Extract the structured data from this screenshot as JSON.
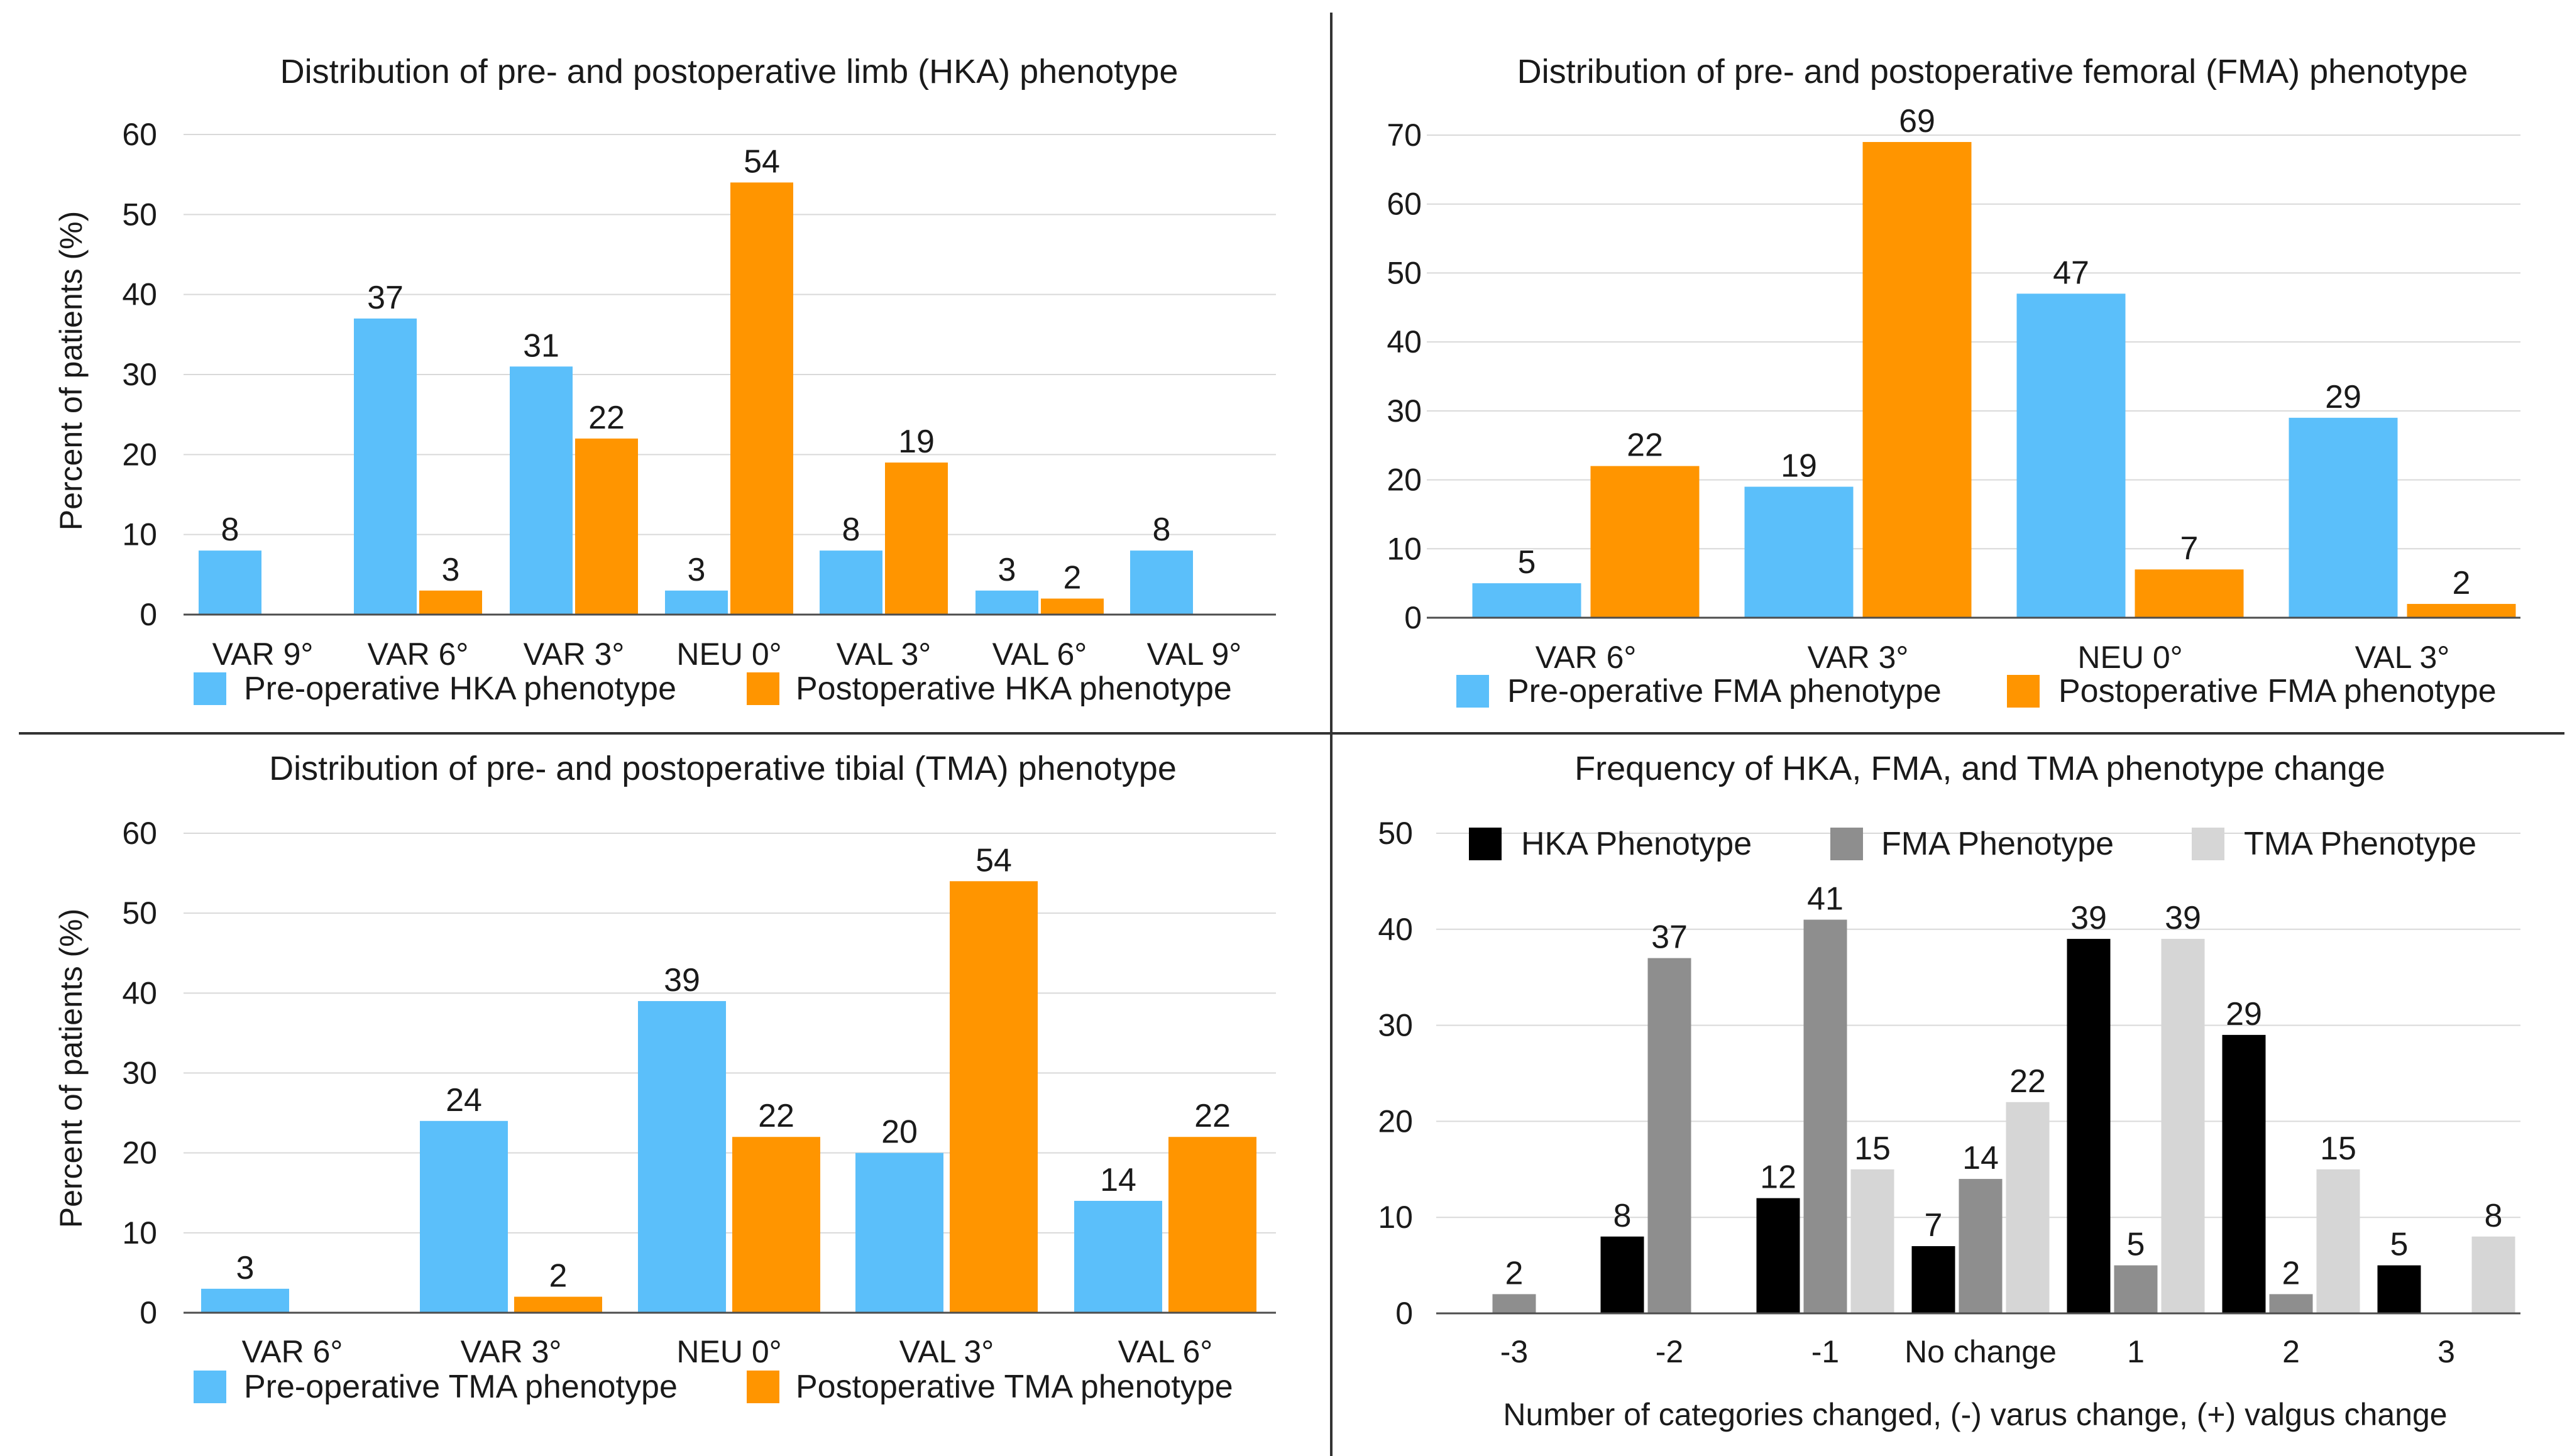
{
  "colors": {
    "pre": "#5bbffa",
    "post": "#ff9500",
    "hka": "#000000",
    "fma": "#8e8e8e",
    "tma": "#d6d6d6",
    "grid": "#d9d9d9",
    "axis": "#4d4d4d",
    "divider": "#333333"
  },
  "chart_data": [
    {
      "type": "bar",
      "title": "Distribution of pre- and postoperative limb (HKA) phenotype",
      "xlabel": "",
      "ylabel": "Percent of patients (%)",
      "ylim": [
        0,
        60
      ],
      "yticks": [
        "0",
        "10",
        "20",
        "30",
        "40",
        "50",
        "60"
      ],
      "legend_position": "bottom",
      "categories": [
        "VAR 9°",
        "VAR 6°",
        "VAR 3°",
        "NEU 0°",
        "VAL 3°",
        "VAL 6°",
        "VAL 9°"
      ],
      "series": [
        {
          "name": "Pre-operative HKA phenotype",
          "color": "#5bbffa",
          "values": [
            8,
            37,
            31,
            3,
            8,
            3,
            8
          ],
          "labels": [
            "8",
            "37",
            "31",
            "3",
            "8",
            "3",
            "8"
          ]
        },
        {
          "name": "Postoperative HKA phenotype",
          "color": "#ff9500",
          "values": [
            null,
            3,
            22,
            54,
            19,
            2,
            null
          ],
          "labels": [
            "",
            "3",
            "22",
            "54",
            "19",
            "2",
            ""
          ]
        }
      ]
    },
    {
      "type": "bar",
      "title": "Distribution of pre- and postoperative femoral (FMA) phenotype",
      "xlabel": "",
      "ylabel": "",
      "ylim": [
        0,
        70
      ],
      "yticks": [
        "0",
        "10",
        "20",
        "30",
        "40",
        "50",
        "60",
        "70"
      ],
      "legend_position": "bottom",
      "categories": [
        "VAR 6°",
        "VAR 3°",
        "NEU 0°",
        "VAL 3°"
      ],
      "series": [
        {
          "name": "Pre-operative FMA phenotype",
          "color": "#5bbffa",
          "values": [
            5,
            19,
            47,
            29
          ],
          "labels": [
            "5",
            "19",
            "47",
            "29"
          ]
        },
        {
          "name": "Postoperative FMA phenotype",
          "color": "#ff9500",
          "values": [
            22,
            69,
            7,
            2
          ],
          "labels": [
            "22",
            "69",
            "7",
            "2"
          ]
        }
      ]
    },
    {
      "type": "bar",
      "title": "Distribution of pre- and postoperative tibial (TMA) phenotype",
      "xlabel": "",
      "ylabel": "Percent of patients (%)",
      "ylim": [
        0,
        60
      ],
      "yticks": [
        "0",
        "10",
        "20",
        "30",
        "40",
        "50",
        "60"
      ],
      "legend_position": "bottom",
      "categories": [
        "VAR 6°",
        "VAR 3°",
        "NEU 0°",
        "VAL 3°",
        "VAL 6°"
      ],
      "series": [
        {
          "name": "Pre-operative TMA phenotype",
          "color": "#5bbffa",
          "values": [
            3,
            24,
            39,
            20,
            14
          ],
          "labels": [
            "3",
            "24",
            "39",
            "20",
            "14"
          ]
        },
        {
          "name": "Postoperative TMA phenotype",
          "color": "#ff9500",
          "values": [
            null,
            2,
            22,
            54,
            22
          ],
          "labels": [
            "",
            "2",
            "22",
            "54",
            "22"
          ]
        }
      ]
    },
    {
      "type": "bar",
      "title": "Frequency of HKA, FMA, and TMA phenotype change",
      "xlabel": "Number of categories changed, (-) varus change, (+) valgus change",
      "ylabel": "",
      "ylim": [
        0,
        50
      ],
      "yticks": [
        "0",
        "10",
        "20",
        "30",
        "40",
        "50"
      ],
      "legend_position": "top",
      "categories": [
        "-3",
        "-2",
        "-1",
        "No change",
        "1",
        "2",
        "3"
      ],
      "series": [
        {
          "name": "HKA Phenotype",
          "color": "#000000",
          "values": [
            null,
            8,
            12,
            7,
            39,
            29,
            5
          ],
          "labels": [
            "",
            "8",
            "12",
            "7",
            "39",
            "29",
            "5"
          ]
        },
        {
          "name": "FMA Phenotype",
          "color": "#8e8e8e",
          "values": [
            2,
            37,
            41,
            14,
            5,
            2,
            null
          ],
          "labels": [
            "2",
            "37",
            "41",
            "14",
            "5",
            "2",
            ""
          ]
        },
        {
          "name": "TMA Phenotype",
          "color": "#d6d6d6",
          "values": [
            null,
            null,
            15,
            22,
            39,
            15,
            8
          ],
          "labels": [
            "",
            "",
            "15",
            "22",
            "39",
            "15",
            "8"
          ]
        }
      ]
    }
  ]
}
